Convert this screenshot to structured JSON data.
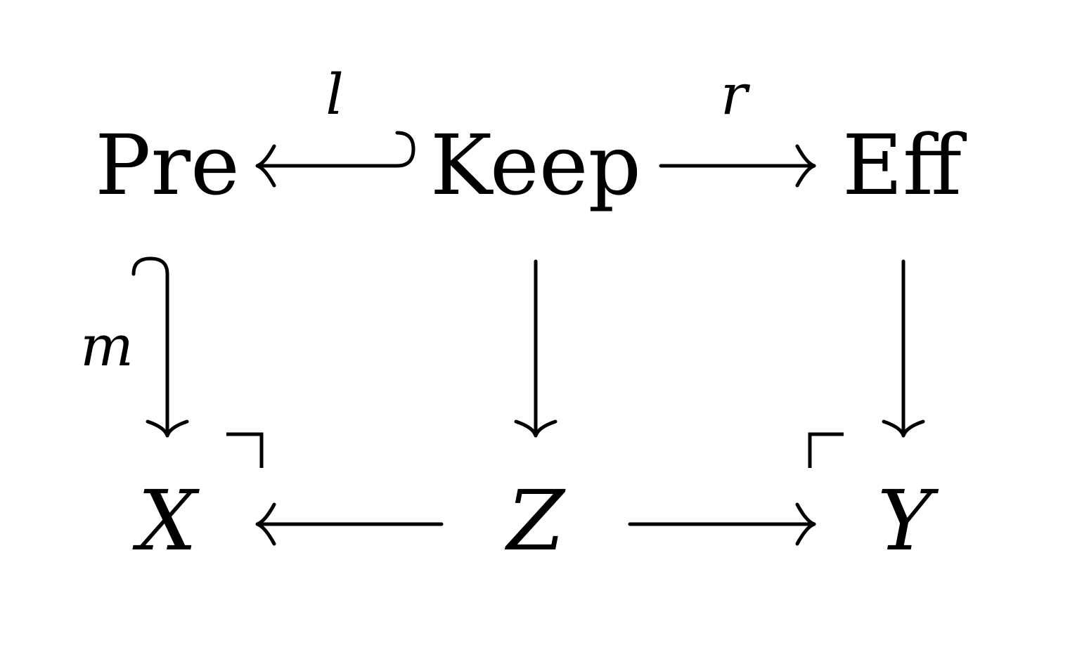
{
  "nodes": {
    "pre": "Pre",
    "keep": "Keep",
    "eff": "Eff",
    "x": "X",
    "z": "Z",
    "y": "Y"
  },
  "arrows": {
    "l": {
      "label": "l",
      "from": "Keep",
      "to": "Pre",
      "style": "hooked-mono"
    },
    "r": {
      "label": "r",
      "from": "Keep",
      "to": "Eff",
      "style": "plain"
    },
    "m": {
      "label": "m",
      "from": "Pre",
      "to": "X",
      "style": "hooked-mono"
    },
    "keep_z": {
      "label": "",
      "from": "Keep",
      "to": "Z",
      "style": "plain"
    },
    "eff_y": {
      "label": "",
      "from": "Eff",
      "to": "Y",
      "style": "plain"
    },
    "z_x": {
      "label": "",
      "from": "Z",
      "to": "X",
      "style": "plain"
    },
    "z_y": {
      "label": "",
      "from": "Z",
      "to": "Y",
      "style": "plain"
    }
  },
  "pushout_markers": [
    "left-square",
    "right-square"
  ],
  "colors": {
    "ink": "#000000",
    "background": "#ffffff"
  }
}
